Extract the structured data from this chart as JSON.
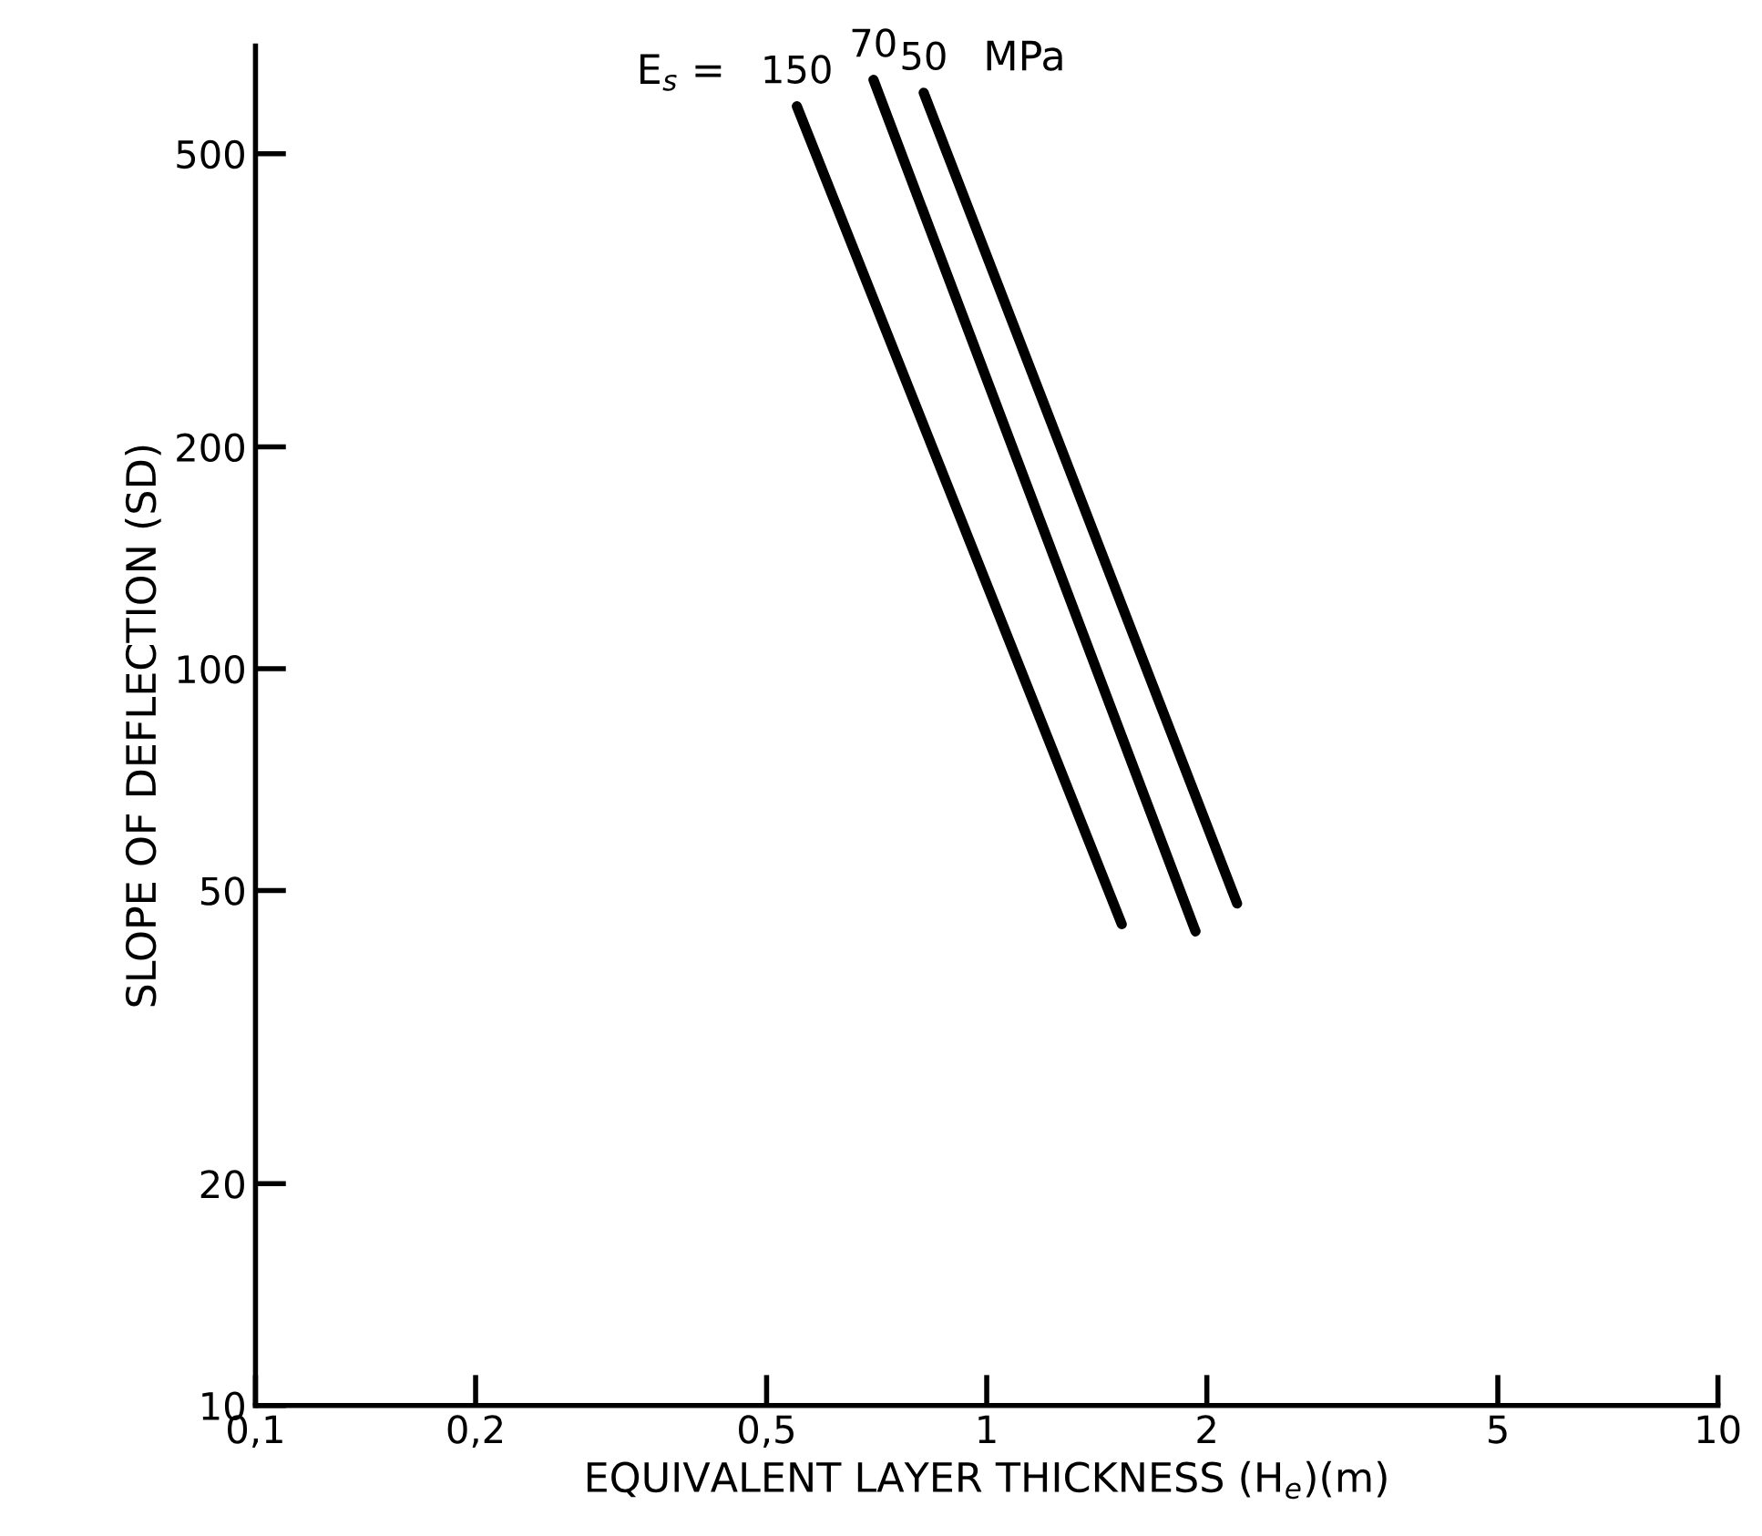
{
  "chart_data": {
    "type": "line",
    "xlabel": "EQUIVALENT LAYER THICKNESS (H$_{e}$)(m)",
    "ylabel": "SLOPE OF DEFLECTION (SD)",
    "log": "xy",
    "xlim": [
      0.1,
      10
    ],
    "ylim": [
      10,
      700
    ],
    "xticks": [
      {
        "value": 0.1,
        "label": "0,1"
      },
      {
        "value": 0.2,
        "label": "0,2"
      },
      {
        "value": 0.5,
        "label": "0,5"
      },
      1,
      2,
      5,
      10
    ],
    "yticks": [
      10,
      20,
      50,
      100,
      200,
      500
    ],
    "annotations": [
      "E$_{s}$ =",
      "MPa"
    ],
    "series": [
      {
        "name": "150",
        "color": "#000000",
        "x": [
          0.55,
          1.53
        ],
        "values": [
          580,
          45
        ]
      },
      {
        "name": "70",
        "color": "#000000",
        "x": [
          0.7,
          1.93
        ],
        "values": [
          630,
          44
        ]
      },
      {
        "name": "50",
        "color": "#000000",
        "x": [
          0.82,
          2.2
        ],
        "values": [
          605,
          48
        ]
      }
    ],
    "grid": false,
    "legend": false,
    "marker": "none",
    "line_style": "solid"
  }
}
